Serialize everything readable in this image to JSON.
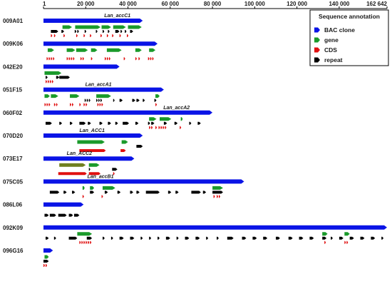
{
  "axis": {
    "min": 1,
    "max": 162642,
    "tick_labels": [
      {
        "value": 1,
        "label": "1"
      },
      {
        "value": 20000,
        "label": "20 000"
      },
      {
        "value": 40000,
        "label": "40 000"
      },
      {
        "value": 60000,
        "label": "60 000"
      },
      {
        "value": 80000,
        "label": "80 000"
      },
      {
        "value": 100000,
        "label": "100 000"
      },
      {
        "value": 120000,
        "label": "120 000"
      },
      {
        "value": 140000,
        "label": "140 000"
      },
      {
        "value": 162642,
        "label": "162 642"
      }
    ]
  },
  "legend": {
    "title": "Sequence annotation",
    "items": [
      {
        "label": "BAC clone",
        "color": "#0a14e6"
      },
      {
        "label": "gene",
        "color": "#1a9a2a"
      },
      {
        "label": "CDS",
        "color": "#e01010"
      },
      {
        "label": "repeat",
        "color": "#000000"
      }
    ]
  },
  "colors": {
    "clone": "#0a14e6",
    "gene": "#1a9a2a",
    "target_gene": "#6f7f1f",
    "cds": "#e01010",
    "repeat": "#000000",
    "axis": "#000000"
  },
  "clones": [
    {
      "name": "009A01",
      "length": 47000,
      "target_gene": {
        "label": "Lan_accC1",
        "pos": 35000
      },
      "genes": [
        [
          9000,
          13500
        ],
        [
          15000,
          27000
        ],
        [
          27500,
          32000
        ],
        [
          33000,
          39000
        ],
        [
          40000,
          46500
        ]
      ],
      "repeats": [
        [
          3500,
          7000
        ],
        [
          8500,
          9800
        ],
        [
          14800,
          15600
        ],
        [
          16000,
          16800
        ],
        [
          19500,
          20300
        ],
        [
          24800,
          25600
        ],
        [
          28000,
          28800
        ],
        [
          30500,
          31300
        ],
        [
          34000,
          36000
        ],
        [
          36500,
          37300
        ],
        [
          38500,
          39300
        ],
        [
          41000,
          42500
        ]
      ],
      "cds": [
        [
          3500,
          4200
        ],
        [
          5000,
          5700
        ],
        [
          9500,
          10200
        ],
        [
          15500,
          16200
        ],
        [
          19000,
          19700
        ],
        [
          22000,
          22700
        ],
        [
          27000,
          27700
        ],
        [
          30000,
          30700
        ],
        [
          32500,
          33200
        ],
        [
          36000,
          36700
        ],
        [
          39500,
          40200
        ]
      ]
    },
    {
      "name": "009K06",
      "length": 54000,
      "genes": [
        [
          2000,
          5000
        ],
        [
          11000,
          15000
        ],
        [
          15500,
          21000
        ],
        [
          22500,
          25500
        ],
        [
          30000,
          37000
        ],
        [
          43500,
          46500
        ],
        [
          50000,
          53000
        ]
      ],
      "repeats": [],
      "cds": [
        [
          1500,
          2200
        ],
        [
          2500,
          3200
        ],
        [
          3500,
          4200
        ],
        [
          4500,
          5200
        ],
        [
          11000,
          11700
        ],
        [
          12000,
          12700
        ],
        [
          13000,
          13700
        ],
        [
          14000,
          14700
        ],
        [
          17500,
          18200
        ],
        [
          18500,
          19200
        ],
        [
          22500,
          23200
        ],
        [
          29000,
          29700
        ],
        [
          30000,
          30700
        ],
        [
          31000,
          31700
        ],
        [
          38000,
          38700
        ],
        [
          43500,
          44200
        ],
        [
          45000,
          45700
        ],
        [
          49500,
          50200
        ],
        [
          50500,
          51200
        ],
        [
          51500,
          52200
        ]
      ]
    },
    {
      "name": "042E20",
      "length": 36000,
      "genes": [
        [
          500,
          8500
        ]
      ],
      "repeats": [
        [
          1000,
          2000
        ],
        [
          6000,
          7500
        ],
        [
          7500,
          12500
        ]
      ],
      "cds": [
        [
          1000,
          1700
        ],
        [
          2000,
          2700
        ],
        [
          3000,
          3700
        ],
        [
          4000,
          4700
        ]
      ]
    },
    {
      "name": "051F15",
      "length": 57000,
      "target_gene": {
        "label": "Lan_accA1",
        "pos": 26000
      },
      "genes": [
        [
          500,
          3000
        ],
        [
          3500,
          7000
        ],
        [
          12500,
          17000
        ],
        [
          25000,
          32000
        ],
        [
          53000,
          55000
        ]
      ],
      "repeats": [
        [
          19500,
          20200
        ],
        [
          20500,
          21200
        ],
        [
          21500,
          22200
        ],
        [
          25000,
          25700
        ],
        [
          26000,
          26700
        ],
        [
          27000,
          27700
        ],
        [
          33000,
          33700
        ],
        [
          36000,
          37500
        ],
        [
          42000,
          43500
        ],
        [
          44000,
          45500
        ],
        [
          47000,
          48000
        ],
        [
          52500,
          53500
        ]
      ],
      "cds": [
        [
          500,
          1200
        ],
        [
          1500,
          2200
        ],
        [
          2500,
          3200
        ],
        [
          5000,
          5700
        ],
        [
          6000,
          6700
        ],
        [
          12500,
          13200
        ],
        [
          13500,
          14200
        ],
        [
          17000,
          17700
        ],
        [
          19000,
          19700
        ],
        [
          20000,
          20700
        ],
        [
          25500,
          26200
        ],
        [
          26500,
          27200
        ],
        [
          27500,
          28200
        ],
        [
          53000,
          53700
        ]
      ]
    },
    {
      "name": "060F02",
      "length": 80000,
      "target_gene": {
        "label": "Lan_accA2",
        "pos": 63000
      },
      "genes": [
        [
          50000,
          53500
        ],
        [
          55000,
          60500
        ],
        [
          65000,
          65900
        ]
      ],
      "repeats": [
        [
          1000,
          4000
        ],
        [
          7500,
          8800
        ],
        [
          12500,
          13800
        ],
        [
          17000,
          20000
        ],
        [
          21000,
          22500
        ],
        [
          26500,
          28000
        ],
        [
          30500,
          32000
        ],
        [
          34000,
          35300
        ],
        [
          37500,
          40500
        ],
        [
          43500,
          45000
        ],
        [
          49500,
          50500
        ],
        [
          51000,
          52500
        ],
        [
          57000,
          58500
        ],
        [
          62000,
          63500
        ],
        [
          69000,
          70000
        ],
        [
          73000,
          74500
        ]
      ],
      "cds": [
        [
          50000,
          50700
        ],
        [
          51000,
          51700
        ],
        [
          53000,
          53700
        ],
        [
          54500,
          55200
        ],
        [
          55500,
          56200
        ],
        [
          56500,
          57200
        ],
        [
          57500,
          58200
        ],
        [
          64500,
          65200
        ]
      ]
    },
    {
      "name": "070D20",
      "length": 47000,
      "target_gene": {
        "label": "Lan_ACC1",
        "pos": 23000
      },
      "genes": [
        [
          16000,
          29000
        ],
        [
          37000,
          40000
        ]
      ],
      "repeats": [
        [
          44000,
          47000
        ]
      ],
      "cds": [
        [
          17000,
          29500
        ],
        [
          36500,
          39000
        ]
      ]
    },
    {
      "name": "073E17",
      "length": 43000,
      "target_gene": {
        "label": "Lan_ACC2",
        "pos": 17000
      },
      "target_gene_bar": [
        7500,
        20000
      ],
      "genes": [
        [
          21500,
          26500
        ]
      ],
      "repeats": [
        [
          21500,
          22000
        ],
        [
          32500,
          35000
        ]
      ],
      "cds": [
        [
          7000,
          20500
        ],
        [
          21500,
          27000
        ],
        [
          33000,
          33700
        ]
      ]
    },
    {
      "name": "075C05",
      "length": 95000,
      "target_gene": {
        "label": "Lan_accB1",
        "pos": 27000
      },
      "genes": [
        [
          18500,
          19500
        ],
        [
          22000,
          24000
        ],
        [
          28000,
          34000
        ],
        [
          80000,
          85000
        ]
      ],
      "repeats": [
        [
          3000,
          7500
        ],
        [
          9500,
          11000
        ],
        [
          13500,
          15000
        ],
        [
          22000,
          24000
        ],
        [
          29000,
          30500
        ],
        [
          35000,
          36500
        ],
        [
          41000,
          42500
        ],
        [
          44000,
          45500
        ],
        [
          48500,
          55000
        ],
        [
          59000,
          60500
        ],
        [
          62500,
          64000
        ],
        [
          70000,
          74500
        ],
        [
          75500,
          77000
        ],
        [
          80000,
          85000
        ]
      ],
      "cds": [
        [
          18500,
          19200
        ],
        [
          27500,
          28200
        ],
        [
          80500,
          81200
        ],
        [
          82000,
          82700
        ],
        [
          83000,
          83700
        ]
      ]
    },
    {
      "name": "086L06",
      "length": 19000,
      "genes": [],
      "repeats": [
        [
          500,
          2500
        ],
        [
          3000,
          6000
        ],
        [
          7000,
          11000
        ],
        [
          12000,
          14000
        ],
        [
          14500,
          17000
        ]
      ],
      "cds": []
    },
    {
      "name": "092K09",
      "length": 162642,
      "genes": [
        [
          16000,
          23000
        ],
        [
          132000,
          134500
        ],
        [
          142500,
          145000
        ]
      ],
      "repeats": [
        [
          1000,
          2500
        ],
        [
          5000,
          6000
        ],
        [
          12000,
          16000
        ],
        [
          20500,
          23000
        ],
        [
          28000,
          29000
        ],
        [
          32000,
          33000
        ],
        [
          36000,
          38000
        ],
        [
          41000,
          43000
        ],
        [
          46000,
          47000
        ],
        [
          50000,
          51000
        ],
        [
          54000,
          55000
        ],
        [
          58000,
          60000
        ],
        [
          63000,
          64000
        ],
        [
          67000,
          69000
        ],
        [
          72000,
          74000
        ],
        [
          77000,
          78000
        ],
        [
          82000,
          83000
        ],
        [
          87000,
          90000
        ],
        [
          94000,
          96000
        ],
        [
          99000,
          101000
        ],
        [
          104000,
          106000
        ],
        [
          110000,
          112000
        ],
        [
          116000,
          118000
        ],
        [
          121000,
          123000
        ],
        [
          126000,
          128000
        ],
        [
          132000,
          134000
        ],
        [
          136000,
          137000
        ],
        [
          140000,
          142000
        ],
        [
          145000,
          147000
        ],
        [
          150000,
          152000
        ],
        [
          155000,
          157000
        ],
        [
          160000,
          161000
        ]
      ],
      "cds": [
        [
          17000,
          17700
        ],
        [
          18000,
          18700
        ],
        [
          19000,
          19700
        ],
        [
          20000,
          20700
        ],
        [
          21000,
          21700
        ],
        [
          22000,
          22700
        ],
        [
          133000,
          133700
        ],
        [
          142500,
          143200
        ],
        [
          143500,
          144200
        ]
      ]
    },
    {
      "name": "096G16",
      "length": 4500,
      "genes": [
        [
          500,
          2500
        ]
      ],
      "repeats": [
        [
          0,
          2500
        ]
      ],
      "cds": [
        [
          0,
          700
        ],
        [
          1000,
          1700
        ]
      ]
    }
  ]
}
